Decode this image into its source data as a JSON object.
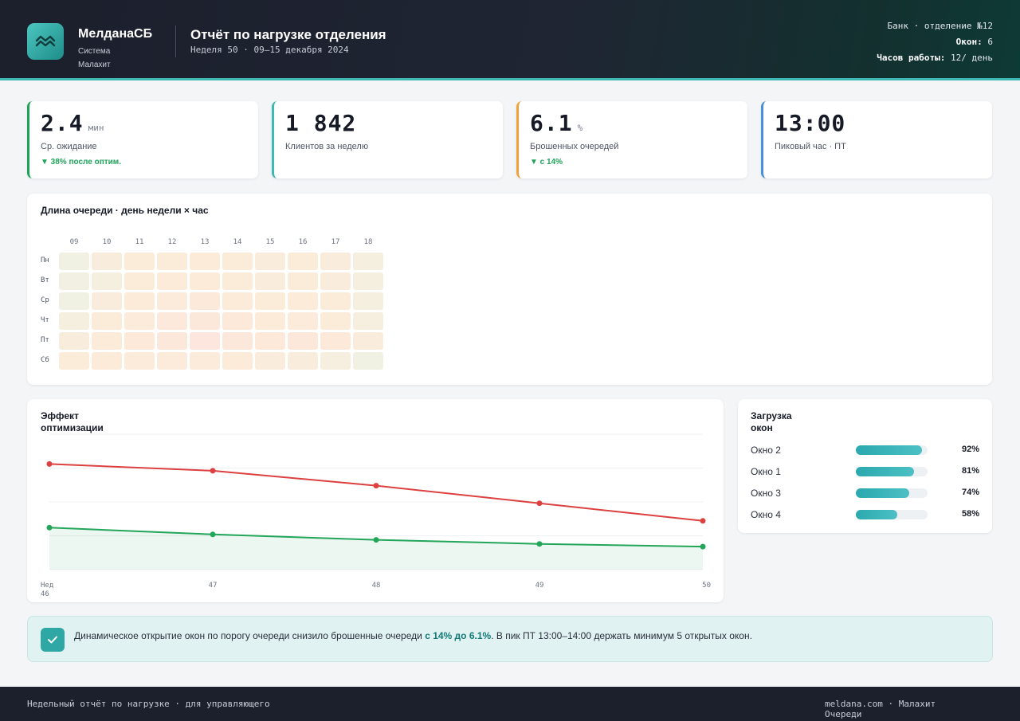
{
  "brand": {
    "name": "МелданаСБ",
    "subtitle": "Система Малахит"
  },
  "report": {
    "title": "Отчёт по нагрузке отделения",
    "subtitle": "Неделя 50 · 09–15 декабря 2024"
  },
  "branch": {
    "line1": "Банк · отделение №12",
    "windows_label": "Окон:",
    "windows_value": "6",
    "hours_label": "Часов работы:",
    "hours_value": "12/ день"
  },
  "kpis": [
    {
      "value": "2.4",
      "unit": "мин",
      "label": "Ср. ожидание",
      "trend": "▼ 38% после оптим.",
      "accent": "#1fa35a"
    },
    {
      "value": "1 842",
      "unit": "",
      "label": "Клиентов за неделю",
      "trend": "",
      "accent": "#3db8b2"
    },
    {
      "value": "6.1",
      "unit": "%",
      "label": "Брошенных очередей",
      "trend": "▼ с 14%",
      "accent": "#f0a13a"
    },
    {
      "value": "13:00",
      "unit": "",
      "label": "Пиковый час · ПТ",
      "trend": "",
      "accent": "#4a8fdc"
    }
  ],
  "heatmap": {
    "title": "Длина очереди · день недели × час",
    "hours": [
      "09",
      "10",
      "11",
      "12",
      "13",
      "14",
      "15",
      "16",
      "17",
      "18"
    ],
    "days": [
      "Пн",
      "Вт",
      "Ср",
      "Чт",
      "Пт",
      "Сб"
    ],
    "colors": {
      "low": "#eef2e6",
      "mid": "#fcebd9",
      "high": "#fde3df"
    },
    "levels": [
      [
        0.1,
        0.35,
        0.45,
        0.45,
        0.5,
        0.45,
        0.4,
        0.45,
        0.4,
        0.25
      ],
      [
        0.15,
        0.25,
        0.45,
        0.5,
        0.5,
        0.45,
        0.4,
        0.45,
        0.4,
        0.25
      ],
      [
        0.1,
        0.4,
        0.5,
        0.55,
        0.6,
        0.5,
        0.45,
        0.5,
        0.45,
        0.25
      ],
      [
        0.25,
        0.45,
        0.55,
        0.65,
        0.7,
        0.6,
        0.5,
        0.55,
        0.45,
        0.3
      ],
      [
        0.35,
        0.5,
        0.6,
        0.7,
        0.8,
        0.7,
        0.6,
        0.7,
        0.6,
        0.4
      ],
      [
        0.45,
        0.5,
        0.55,
        0.55,
        0.55,
        0.5,
        0.4,
        0.35,
        0.3,
        0.1
      ]
    ]
  },
  "chart_data": {
    "type": "line",
    "title": "Эффект оптимизации",
    "x": [
      "Нед 46",
      "47",
      "48",
      "49",
      "50"
    ],
    "ylim": [
      0,
      1
    ],
    "grid": true,
    "series": [
      {
        "values": [
          0.78,
          0.73,
          0.62,
          0.49,
          0.36
        ],
        "color": "#dd4040"
      },
      {
        "values": [
          0.31,
          0.26,
          0.22,
          0.19,
          0.17
        ],
        "color": "#23a55a"
      }
    ]
  },
  "loads": {
    "title": "Загрузка окон",
    "items": [
      {
        "name": "Окно 2",
        "pct": "92%",
        "fraction": 0.92
      },
      {
        "name": "Окно 1",
        "pct": "81%",
        "fraction": 0.81
      },
      {
        "name": "Окно 3",
        "pct": "74%",
        "fraction": 0.74
      },
      {
        "name": "Окно 4",
        "pct": "58%",
        "fraction": 0.58
      }
    ]
  },
  "note": {
    "text_before": "Динамическое открытие окон по порогу очереди снизило брошенные очереди ",
    "highlight": "с 14% до 6.1%",
    "text_after": ". В пик ПТ 13:00–14:00 держать минимум 5 открытых окон."
  },
  "footer": {
    "left": "Недельный отчёт по нагрузке · для управляющего",
    "right": "meldana.com · Малахит Очереди"
  }
}
